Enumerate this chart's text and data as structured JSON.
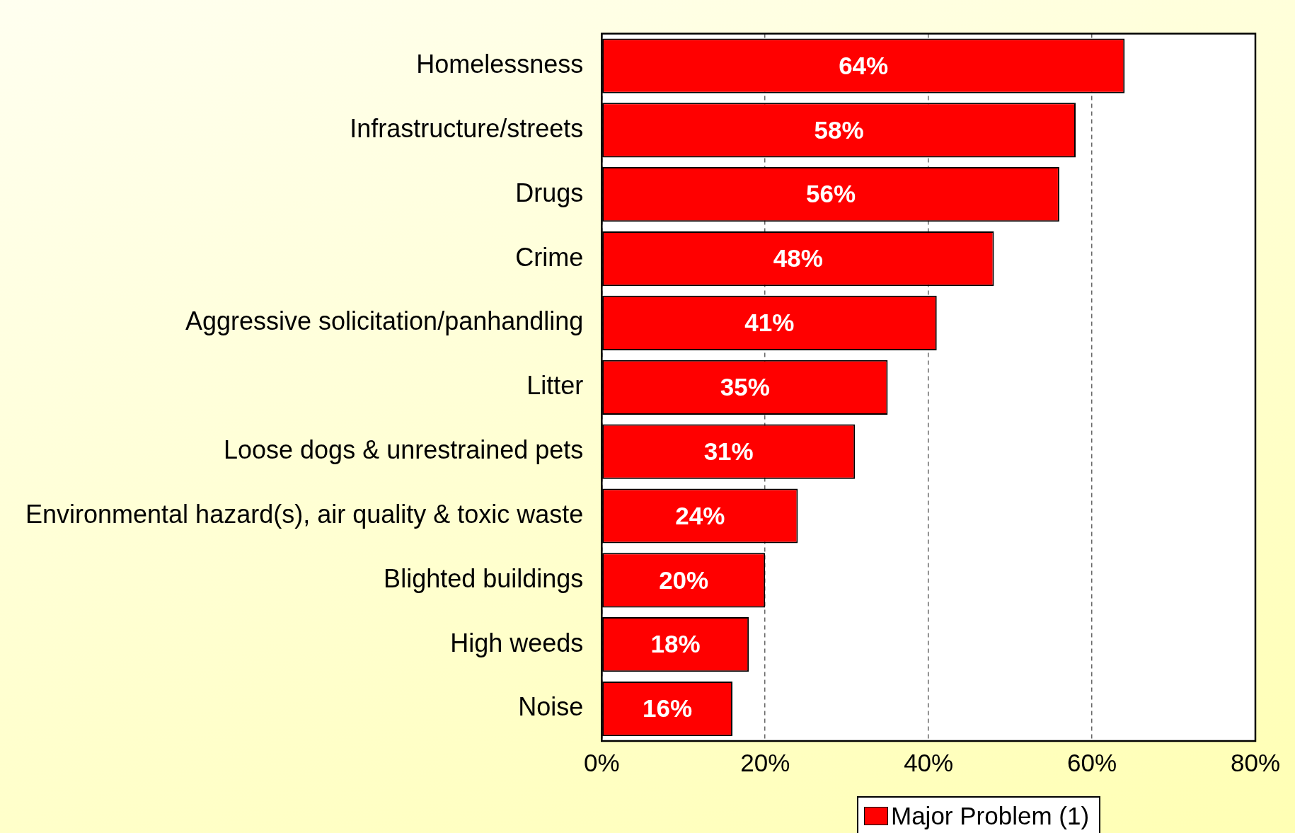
{
  "chart_data": {
    "type": "bar",
    "orientation": "horizontal",
    "categories": [
      "Homelessness",
      "Infrastructure/streets",
      "Drugs",
      "Crime",
      "Aggressive solicitation/panhandling",
      "Litter",
      "Loose dogs & unrestrained pets",
      "Environmental hazard(s), air quality & toxic waste",
      "Blighted buildings",
      "High weeds",
      "Noise"
    ],
    "series": [
      {
        "name": "Major Problem (1)",
        "color": "#ff0000",
        "values": [
          64,
          58,
          56,
          48,
          41,
          35,
          31,
          24,
          20,
          18,
          16
        ],
        "value_labels": [
          "64%",
          "58%",
          "56%",
          "48%",
          "41%",
          "35%",
          "31%",
          "24%",
          "20%",
          "18%",
          "16%"
        ]
      }
    ],
    "xlim": [
      0,
      80
    ],
    "xticks": [
      {
        "value": 0,
        "label": "0%"
      },
      {
        "value": 20,
        "label": "20%"
      },
      {
        "value": 40,
        "label": "40%"
      },
      {
        "value": 60,
        "label": "60%"
      },
      {
        "value": 80,
        "label": "80%"
      }
    ],
    "grid": "x",
    "legend": "bottom"
  }
}
